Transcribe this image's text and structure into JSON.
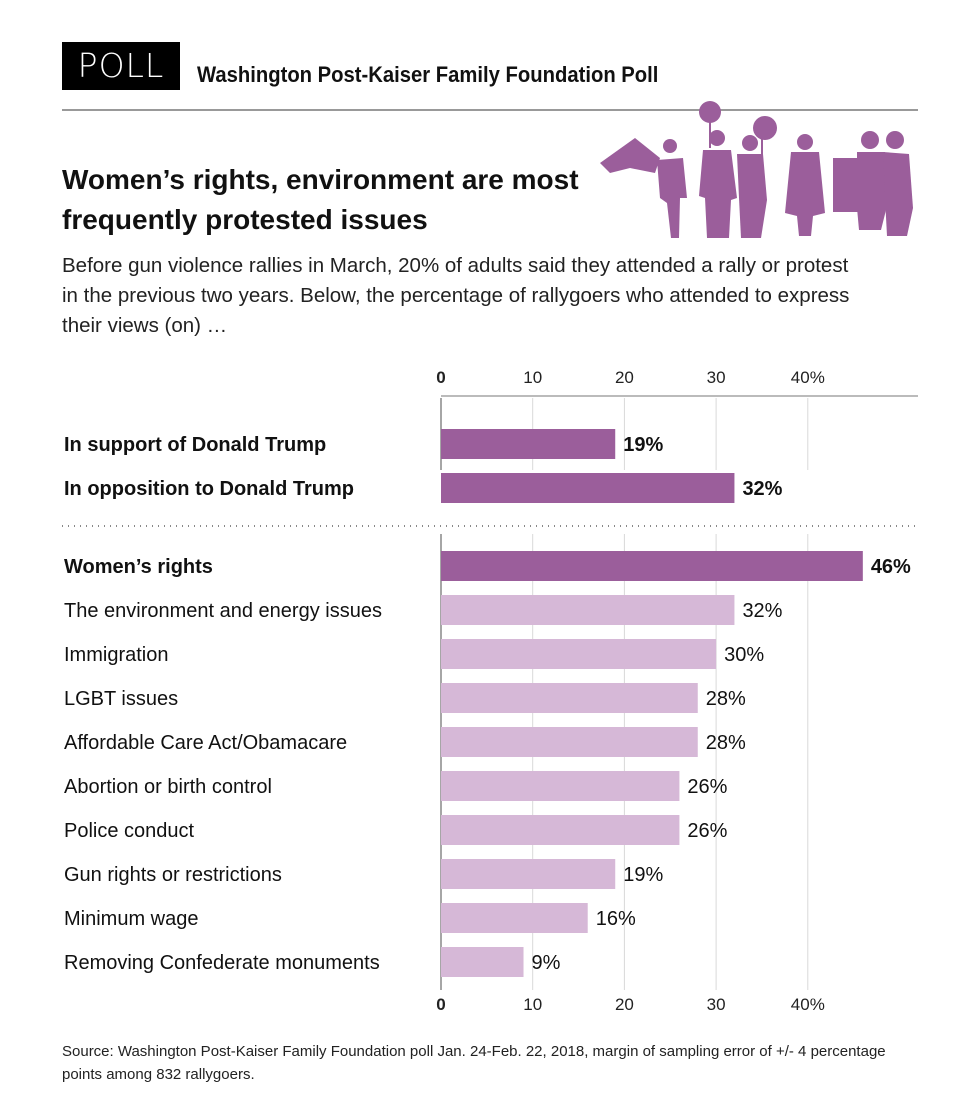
{
  "header": {
    "badge": "POLL",
    "title": "Washington Post-Kaiser Family Foundation Poll"
  },
  "title": "Women’s rights, environment are most frequently protested issues",
  "subtitle": "Before gun violence rallies in March, 20% of adults said they attended a rally or protest in the previous two years. Below, the percentage of rallygoers who attended to express their views (on) …",
  "source": "Source: Washington Post-Kaiser Family Foundation poll Jan. 24-Feb. 22, 2018, margin of sampling error of +/- 4 percentage points among 832 rallygoers.",
  "illustration": "protesters-silhouette-icon",
  "colors": {
    "highlight": "#9b5e9b",
    "regular": "#d6b8d7",
    "grid": "#d9d9d9"
  },
  "chart_data": {
    "type": "bar",
    "orientation": "horizontal",
    "xlim": [
      0,
      50
    ],
    "ticks": [
      0,
      10,
      20,
      30,
      40
    ],
    "tick_labels": [
      "0",
      "10",
      "20",
      "30",
      "40%"
    ],
    "grid": true,
    "axis_positions": [
      "top",
      "bottom"
    ],
    "groups": [
      {
        "categories": [
          "In support of Donald Trump",
          "In opposition to Donald Trump"
        ],
        "values": [
          19,
          32
        ],
        "labels": [
          "19%",
          "32%"
        ],
        "highlight": [
          true,
          true
        ]
      },
      {
        "categories": [
          "Women’s rights",
          "The environment and energy issues",
          "Immigration",
          "LGBT issues",
          "Affordable Care Act/Obamacare",
          "Abortion or birth control",
          "Police conduct",
          "Gun rights or restrictions",
          "Minimum wage",
          "Removing Confederate monuments"
        ],
        "values": [
          46,
          32,
          30,
          28,
          28,
          26,
          26,
          19,
          16,
          9
        ],
        "labels": [
          "46%",
          "32%",
          "30%",
          "28%",
          "28%",
          "26%",
          "26%",
          "19%",
          "16%",
          "9%"
        ],
        "highlight": [
          true,
          false,
          false,
          false,
          false,
          false,
          false,
          false,
          false,
          false
        ]
      }
    ]
  }
}
